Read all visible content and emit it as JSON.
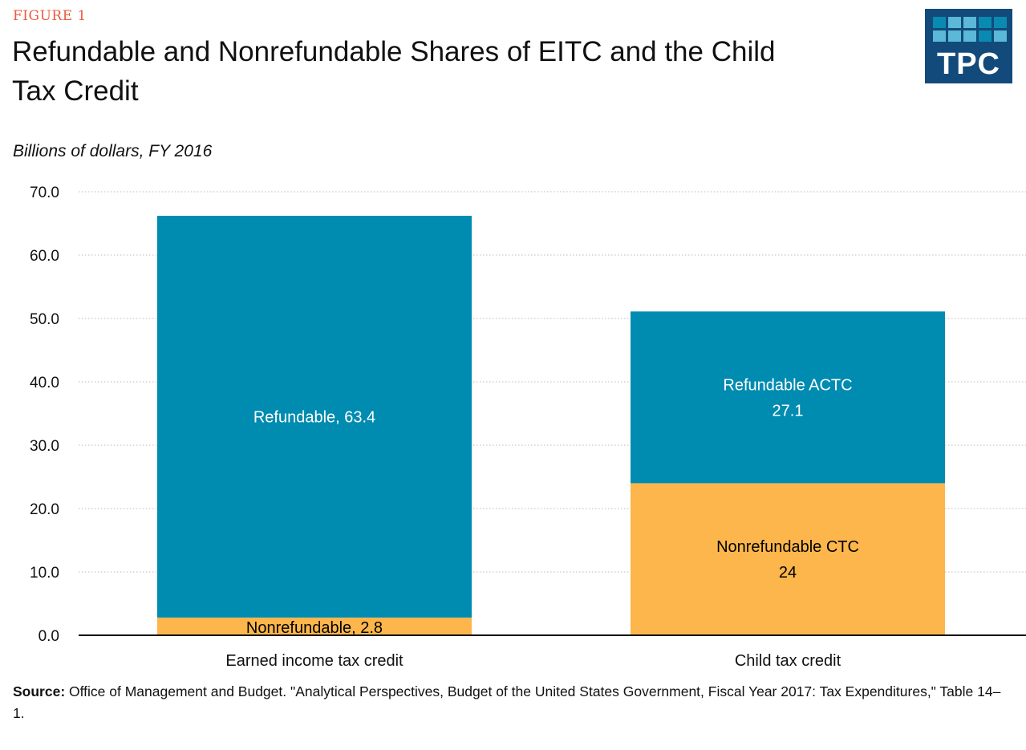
{
  "figure_label": "FIGURE 1",
  "logo_text": "TPC",
  "colors": {
    "refundable": "#008bb0",
    "nonrefundable": "#fdb64b",
    "accent": "#ee5b3c",
    "logo_bg": "#124a7b"
  },
  "source": {
    "label": "Source:",
    "text": " Office of Management and Budget.  \"Analytical Perspectives, Budget of the United States Government, Fiscal Year 2017: Tax Expenditures,\" Table 14–1."
  },
  "chart_data": {
    "type": "bar",
    "stacked": true,
    "title": "Refundable and Nonrefundable Shares of EITC and the Child Tax Credit",
    "subtitle": "Billions of dollars, FY 2016",
    "categories": [
      "Earned income tax credit",
      "Child tax credit"
    ],
    "series": [
      {
        "key": "nonrefundable",
        "values": [
          2.8,
          24
        ],
        "labels": [
          [
            "Nonrefundable, 2.8"
          ],
          [
            "Nonrefundable CTC",
            "24"
          ]
        ],
        "label_color": "#000000"
      },
      {
        "key": "refundable",
        "values": [
          63.4,
          27.1
        ],
        "labels": [
          [
            "Refundable, 63.4"
          ],
          [
            "Refundable ACTC",
            "27.1"
          ]
        ],
        "label_color": "#ffffff"
      }
    ],
    "yticks": [
      "0.0",
      "10.0",
      "20.0",
      "30.0",
      "40.0",
      "50.0",
      "60.0",
      "70.0"
    ],
    "ylim": [
      0,
      70
    ],
    "grid": true
  }
}
